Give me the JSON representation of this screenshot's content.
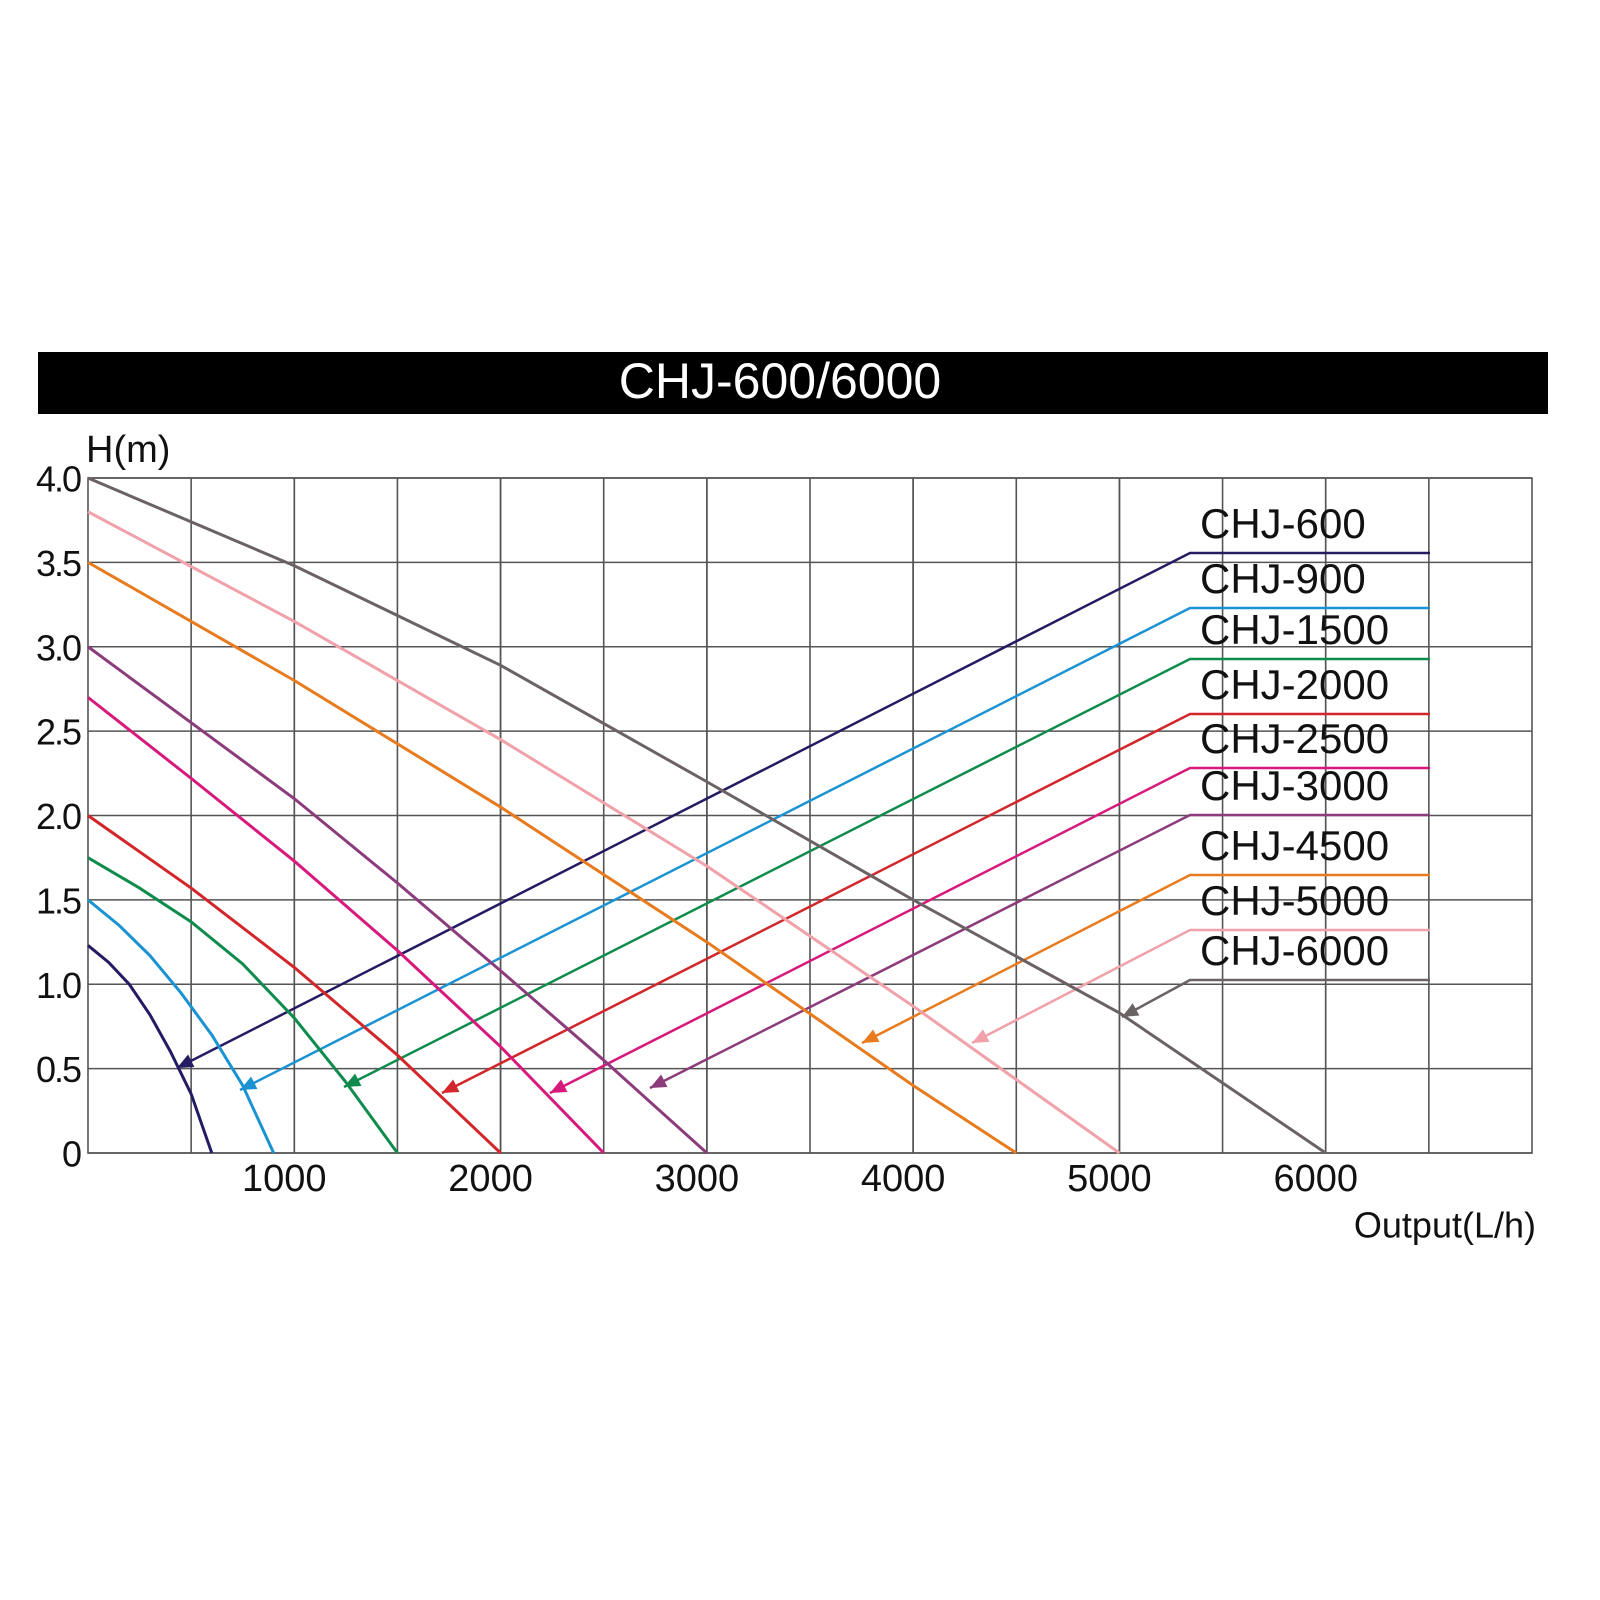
{
  "chart_data": {
    "type": "line",
    "title": "CHJ-600/6000",
    "y_label": "H(m)",
    "x_label": "Output(L/h)",
    "xlim": [
      0,
      7000
    ],
    "xticks": [
      1000,
      2000,
      3000,
      4000,
      5000,
      6000
    ],
    "ylim": [
      0,
      4
    ],
    "yticks": [
      0,
      0.5,
      {
        "value": 1,
        "label": "1.0"
      },
      1.5,
      {
        "value": 2,
        "label": "2.0"
      },
      2.5,
      {
        "value": 3,
        "label": "3.0"
      },
      3.5,
      {
        "value": 4,
        "label": "4.0"
      }
    ],
    "grid": true,
    "series": [
      {
        "name": "CHJ-600",
        "color": "#241c63",
        "x": [
          0,
          100,
          200,
          300,
          400,
          500,
          600
        ],
        "values": [
          1.23,
          1.13,
          1.0,
          0.82,
          0.6,
          0.35,
          0
        ]
      },
      {
        "name": "CHJ-900",
        "color": "#1b93d3",
        "x": [
          0,
          150,
          300,
          450,
          600,
          750,
          900
        ],
        "values": [
          1.5,
          1.35,
          1.17,
          0.95,
          0.7,
          0.4,
          0
        ]
      },
      {
        "name": "CHJ-1500",
        "color": "#0f8c4c",
        "x": [
          0,
          250,
          500,
          750,
          1000,
          1250,
          1500
        ],
        "values": [
          1.75,
          1.57,
          1.37,
          1.12,
          0.8,
          0.42,
          0
        ]
      },
      {
        "name": "CHJ-2000",
        "color": "#d3262b",
        "x": [
          0,
          500,
          1000,
          1500,
          2000
        ],
        "values": [
          2.0,
          1.57,
          1.1,
          0.58,
          0
        ]
      },
      {
        "name": "CHJ-2500",
        "color": "#d7197c",
        "x": [
          0,
          500,
          1000,
          1500,
          2000,
          2500
        ],
        "values": [
          2.7,
          2.22,
          1.73,
          1.2,
          0.63,
          0
        ]
      },
      {
        "name": "CHJ-3000",
        "color": "#8c3b7b",
        "x": [
          0,
          500,
          1000,
          1500,
          2000,
          2500,
          3000
        ],
        "values": [
          3.0,
          2.55,
          2.1,
          1.6,
          1.08,
          0.55,
          0
        ]
      },
      {
        "name": "CHJ-4500",
        "color": "#e87b1e",
        "x": [
          0,
          1000,
          2000,
          3000,
          4000,
          4500
        ],
        "values": [
          3.5,
          2.8,
          2.05,
          1.25,
          0.4,
          0
        ]
      },
      {
        "name": "CHJ-5000",
        "color": "#f0a1a9",
        "x": [
          0,
          1000,
          2000,
          3000,
          4000,
          5000
        ],
        "values": [
          3.8,
          3.15,
          2.45,
          1.7,
          0.87,
          0
        ]
      },
      {
        "name": "CHJ-6000",
        "color": "#6b6363",
        "x": [
          0,
          1000,
          2000,
          3000,
          4000,
          5000,
          6000
        ],
        "values": [
          4.0,
          3.48,
          2.89,
          2.2,
          1.5,
          0.83,
          0
        ]
      }
    ]
  }
}
